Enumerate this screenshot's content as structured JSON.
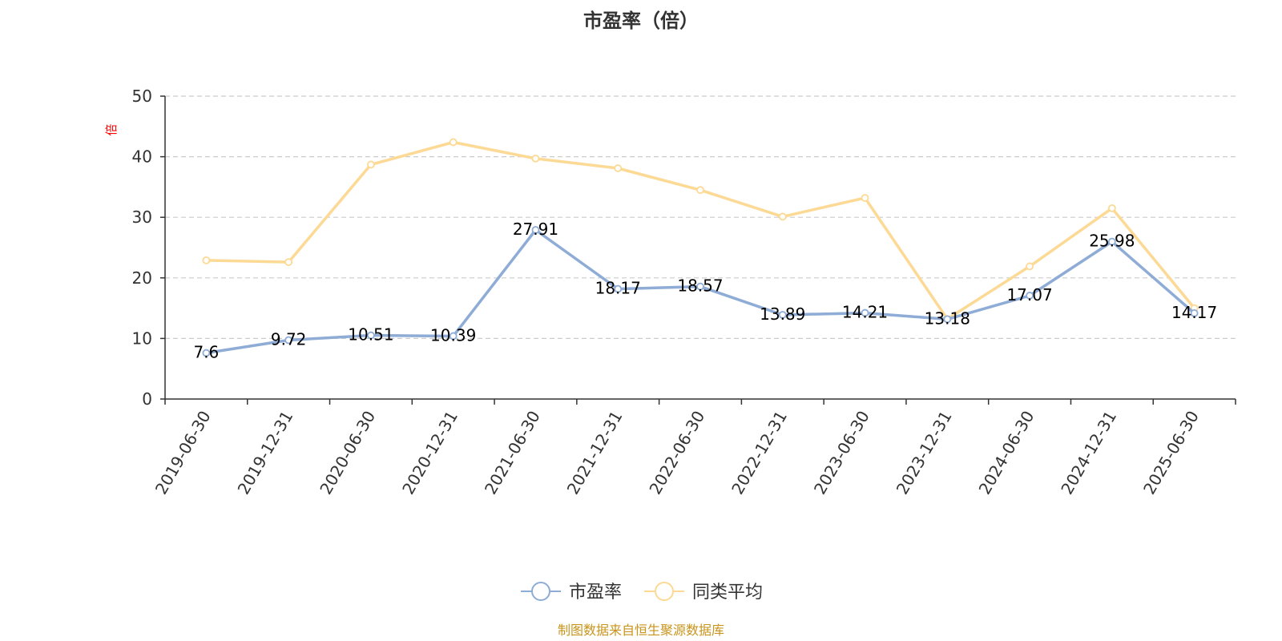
{
  "chart_data": {
    "type": "line",
    "title": "市盈率（倍）",
    "ylabel": "倍",
    "xlabel": "",
    "categories": [
      "2019-06-30",
      "2019-12-31",
      "2020-06-30",
      "2020-12-31",
      "2021-06-30",
      "2021-12-31",
      "2022-06-30",
      "2022-12-31",
      "2023-06-30",
      "2023-12-31",
      "2024-06-30",
      "2024-12-31",
      "2025-06-30"
    ],
    "ylim": [
      0,
      50
    ],
    "yticks": [
      0,
      10,
      20,
      30,
      40,
      50
    ],
    "grid": true,
    "legend_position": "bottom",
    "series": [
      {
        "name": "市盈率",
        "color": "#8eacd6",
        "values": [
          7.6,
          9.72,
          10.51,
          10.39,
          27.91,
          18.17,
          18.57,
          13.89,
          14.21,
          13.18,
          17.07,
          25.98,
          14.17
        ],
        "labels": [
          "7.6",
          "9.72",
          "10.51",
          "10.39",
          "27.91",
          "18.17",
          "18.57",
          "13.89",
          "14.21",
          "13.18",
          "17.07",
          "25.98",
          "14.17"
        ],
        "show_labels": true
      },
      {
        "name": "同类平均",
        "color": "#fcd994",
        "values": [
          22.9,
          22.6,
          38.7,
          42.4,
          39.7,
          38.1,
          34.5,
          30.1,
          33.2,
          13.2,
          21.9,
          31.5,
          15.0
        ],
        "show_labels": false
      }
    ],
    "source": "制图数据来自恒生聚源数据库"
  }
}
